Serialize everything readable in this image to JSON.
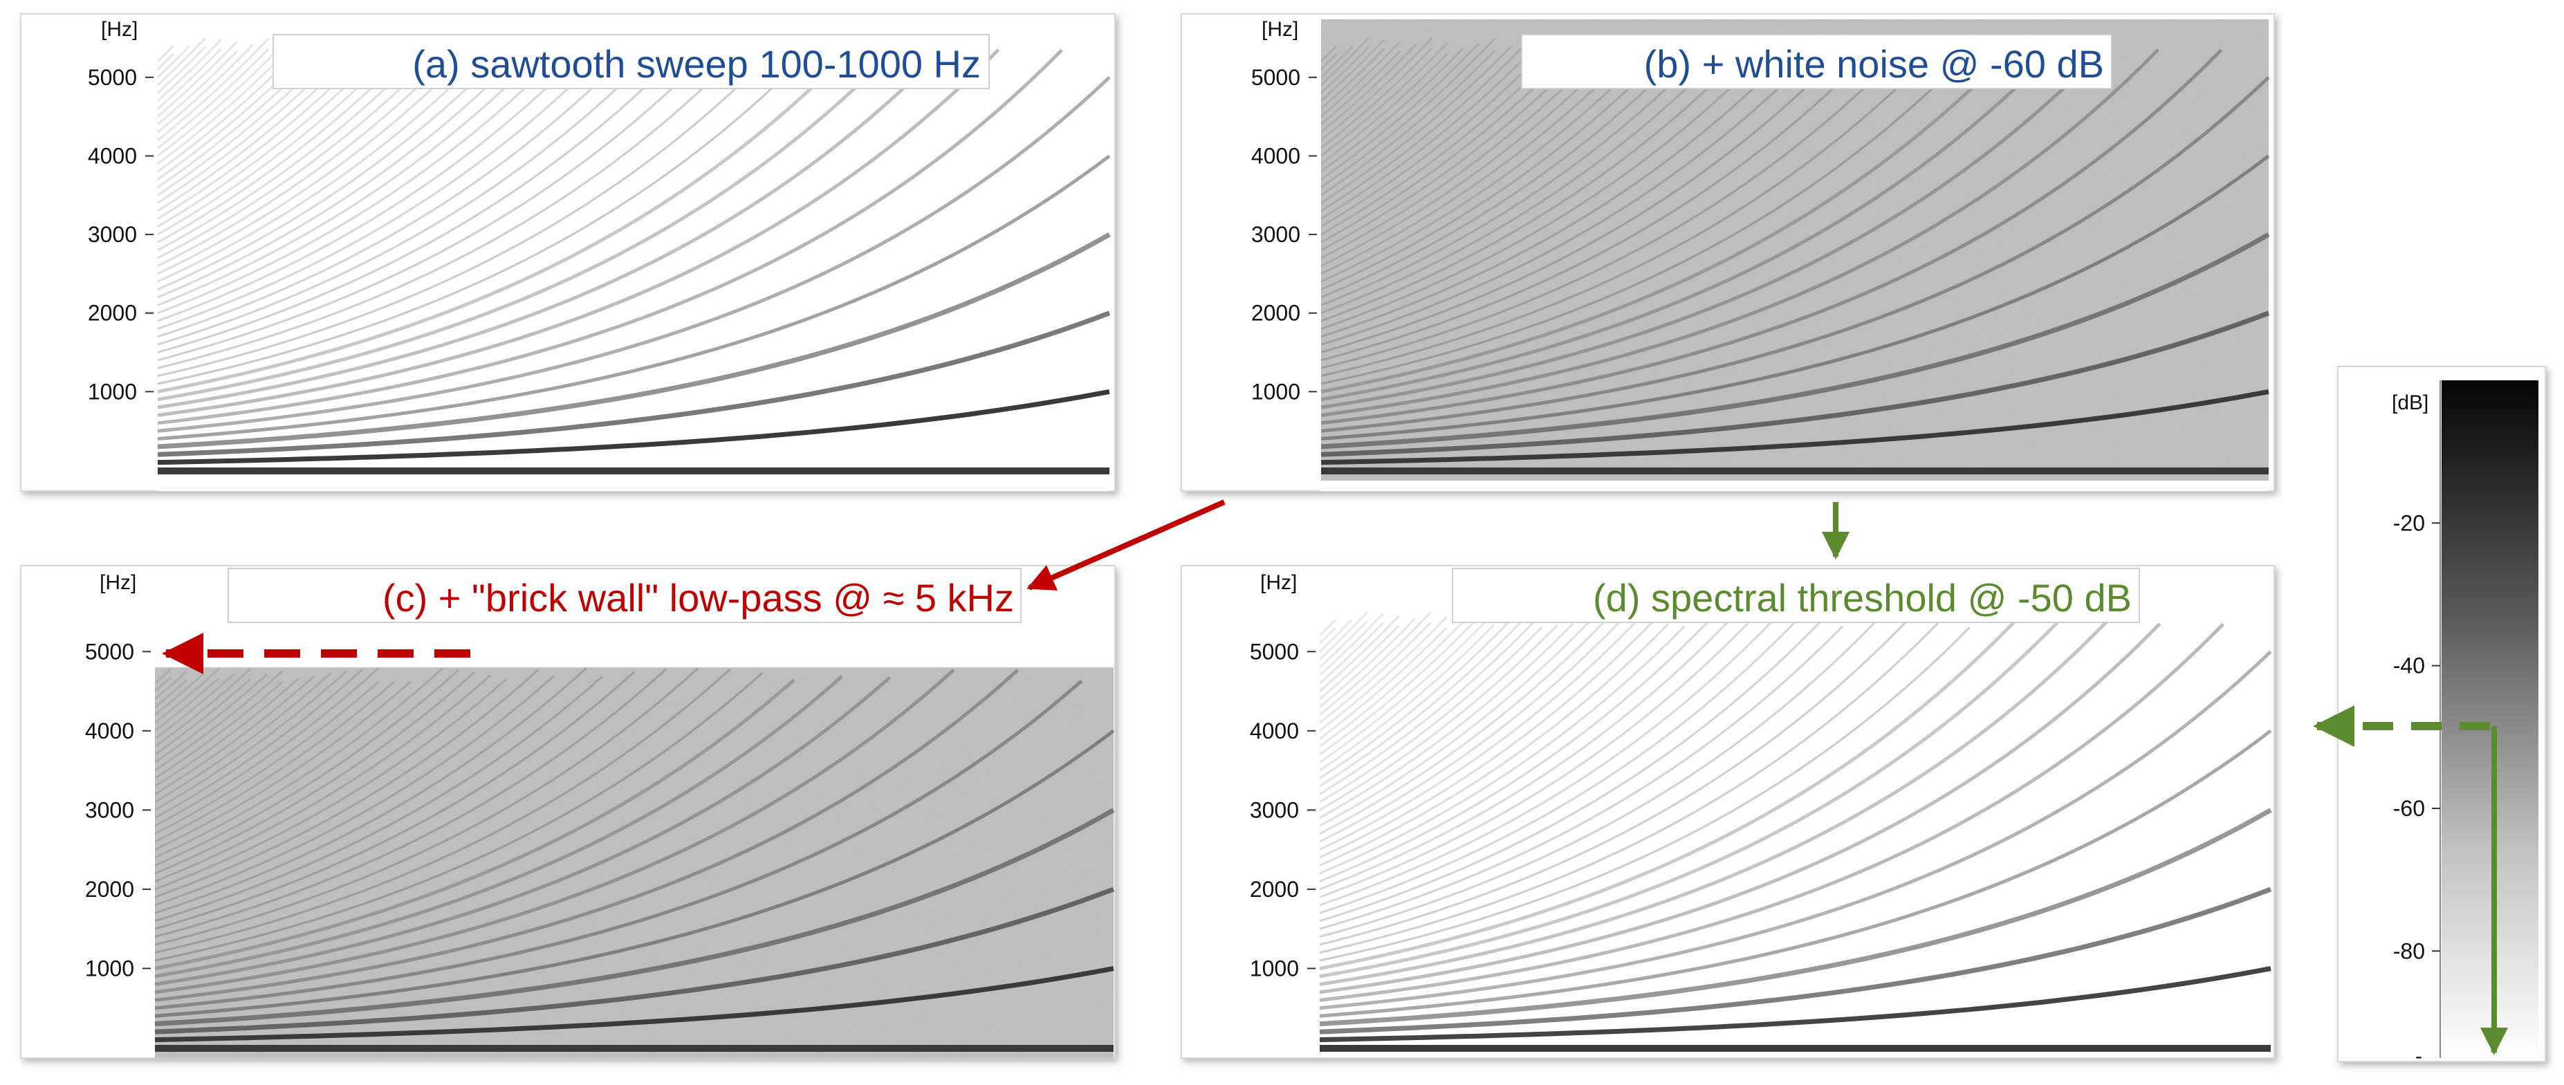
{
  "colors": {
    "title_a": "#1f4e96",
    "title_b": "#1f4e96",
    "title_c": "#c00000",
    "title_d": "#5c8a2e",
    "arrow_red": "#c00000",
    "arrow_green": "#5c8a2e",
    "harmonic": "#3a3a3a",
    "noise": "#b8b8b8"
  },
  "chart_data": [
    {
      "id": "a",
      "type": "heatmap",
      "subtype": "spectrogram",
      "title": "(a) sawtooth sweep 100-1000 Hz",
      "unit_label": "[Hz]",
      "yticks": [
        1000,
        2000,
        3000,
        4000,
        5000
      ],
      "ylim": [
        0,
        5500
      ],
      "sweep_hz": [
        100,
        1000
      ],
      "sweep_shape": "exponential",
      "harmonics_visible": 60,
      "noise_floor_db": null,
      "lowpass_cutoff_hz": null,
      "threshold_db": null
    },
    {
      "id": "b",
      "type": "heatmap",
      "subtype": "spectrogram",
      "title": "(b) + white noise @ -60 dB",
      "unit_label": "[Hz]",
      "yticks": [
        1000,
        2000,
        3000,
        4000,
        5000
      ],
      "ylim": [
        0,
        5500
      ],
      "sweep_hz": [
        100,
        1000
      ],
      "sweep_shape": "exponential",
      "harmonics_visible": 60,
      "noise_floor_db": -60,
      "lowpass_cutoff_hz": null,
      "threshold_db": null
    },
    {
      "id": "c",
      "type": "heatmap",
      "subtype": "spectrogram",
      "title": "(c) + \"brick wall\" low-pass @ ≈ 5 kHz",
      "unit_label": "[Hz]",
      "yticks": [
        1000,
        2000,
        3000,
        4000,
        5000
      ],
      "ylim": [
        0,
        5500
      ],
      "sweep_hz": [
        100,
        1000
      ],
      "sweep_shape": "exponential",
      "harmonics_visible": 60,
      "noise_floor_db": -60,
      "lowpass_cutoff_hz": 4800,
      "threshold_db": null
    },
    {
      "id": "d",
      "type": "heatmap",
      "subtype": "spectrogram",
      "title": "(d) spectral threshold @ -50 dB",
      "unit_label": "[Hz]",
      "yticks": [
        1000,
        2000,
        3000,
        4000,
        5000
      ],
      "ylim": [
        0,
        5500
      ],
      "sweep_hz": [
        100,
        1000
      ],
      "sweep_shape": "exponential",
      "harmonics_visible": 60,
      "noise_floor_db": null,
      "lowpass_cutoff_hz": null,
      "threshold_db": -50
    }
  ],
  "colorbar": {
    "unit_label": "[dB]",
    "ticks": [
      -20,
      -40,
      -60,
      -80
    ],
    "tick_labels": [
      "-20",
      "-40",
      "-60",
      "-80"
    ],
    "range_db": [
      -95,
      0
    ],
    "threshold_db": -50,
    "bottom_label": "-"
  }
}
